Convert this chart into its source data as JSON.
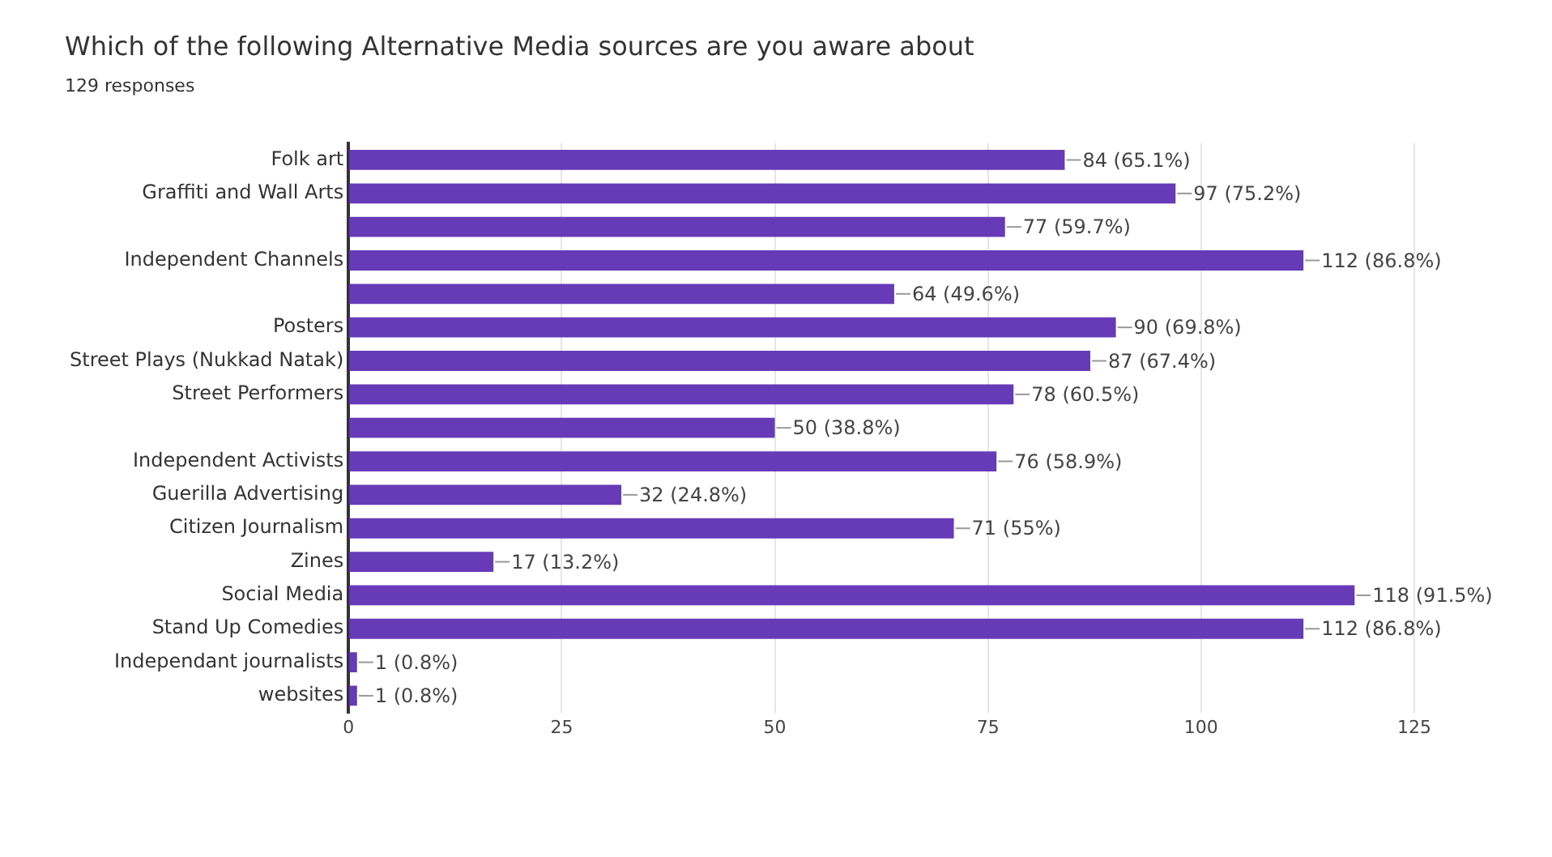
{
  "chart_data": {
    "type": "bar",
    "orientation": "horizontal",
    "title": "Which of the following Alternative Media sources are you aware about",
    "subtitle": "129 responses",
    "categories": [
      "Folk art",
      "Graffiti and Wall Arts",
      null,
      "Independent Channels",
      null,
      "Posters",
      "Street Plays (Nukkad Natak)",
      "Street Performers",
      null,
      "Independent Activists",
      "Guerilla Advertising",
      "Citizen Journalism",
      "Zines",
      "Social Media",
      "Stand Up Comedies",
      "Independant journalists",
      "websites"
    ],
    "values": [
      84,
      97,
      77,
      112,
      64,
      90,
      87,
      78,
      50,
      76,
      32,
      71,
      17,
      118,
      112,
      1,
      1
    ],
    "value_labels": [
      "84 (65.1%)",
      "97 (75.2%)",
      "77 (59.7%)",
      "112 (86.8%)",
      "64 (49.6%)",
      "90 (69.8%)",
      "87 (67.4%)",
      "78 (60.5%)",
      "50 (38.8%)",
      "76 (58.9%)",
      "32 (24.8%)",
      "71 (55%)",
      "17 (13.2%)",
      "118 (91.5%)",
      "112 (86.8%)",
      "1 (0.8%)",
      "1 (0.8%)"
    ],
    "color": "#673ab7",
    "xlim": [
      0,
      125
    ],
    "xticks": [
      0,
      25,
      50,
      75,
      100,
      125
    ],
    "grid": "x"
  }
}
